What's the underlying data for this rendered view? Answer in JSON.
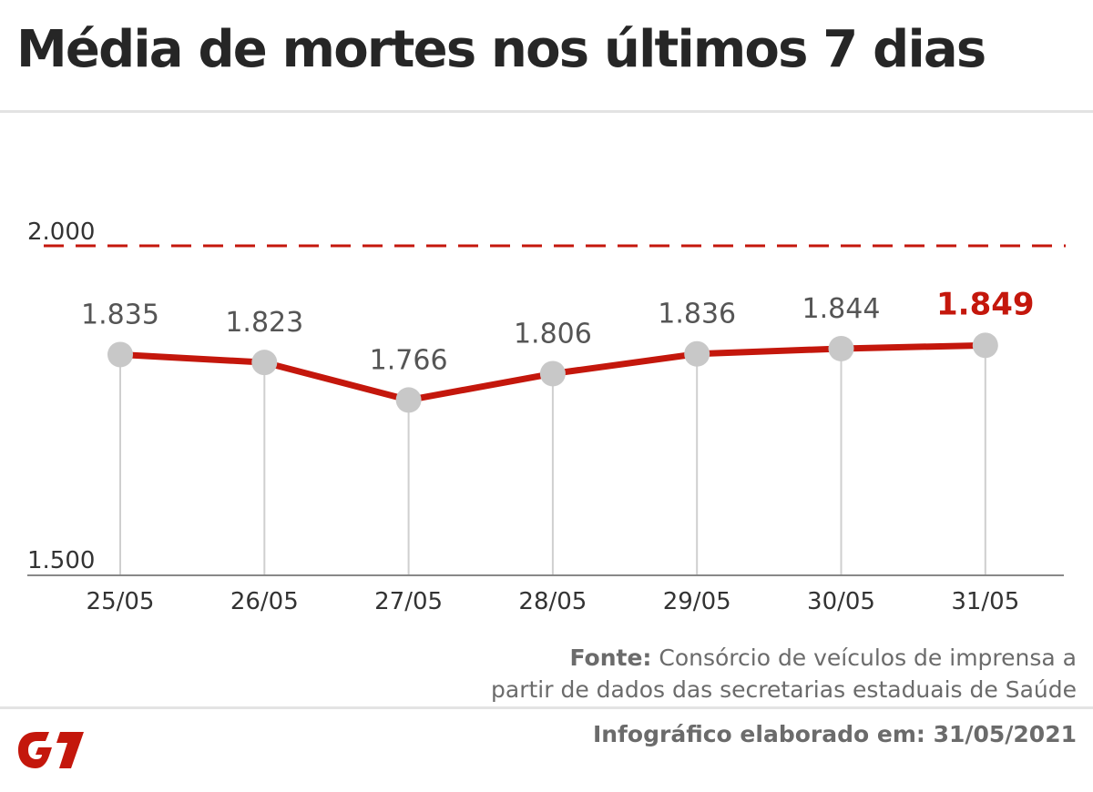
{
  "header": {
    "title": "Média de mortes nos últimos 7 dias"
  },
  "chart_data": {
    "type": "line",
    "title": "Média de mortes nos últimos 7 dias",
    "xlabel": "",
    "ylabel": "",
    "categories": [
      "25/05",
      "26/05",
      "27/05",
      "28/05",
      "29/05",
      "30/05",
      "31/05"
    ],
    "series": [
      {
        "values": [
          1835,
          1823,
          1766,
          1806,
          1836,
          1844,
          1849
        ]
      }
    ],
    "data_labels": [
      "1.835",
      "1.823",
      "1.766",
      "1.806",
      "1.836",
      "1.844",
      "1.849"
    ],
    "highlight_index": 6,
    "ylim": [
      1500,
      2000
    ],
    "y_tick_labels": {
      "min": "1.500",
      "max": "2.000"
    },
    "reference_line": {
      "value": 2000,
      "style": "dashed"
    },
    "grid": false,
    "legend": "none",
    "colors": {
      "line": "#c4170c",
      "highlight_label": "#c4170c",
      "marker": "#c8c8c8",
      "label": "#555555",
      "axis": "#888888",
      "drop_line": "#cfcfcf",
      "reference": "#c4170c"
    }
  },
  "source": {
    "label": "Fonte:",
    "line1": "Consórcio de veículos de imprensa a",
    "line2": "partir de dados das secretarias estaduais de Saúde"
  },
  "footer": {
    "date_note": "Infográfico elaborado em: 31/05/2021",
    "logo_text": "G1",
    "logo_color": "#c4170c"
  }
}
